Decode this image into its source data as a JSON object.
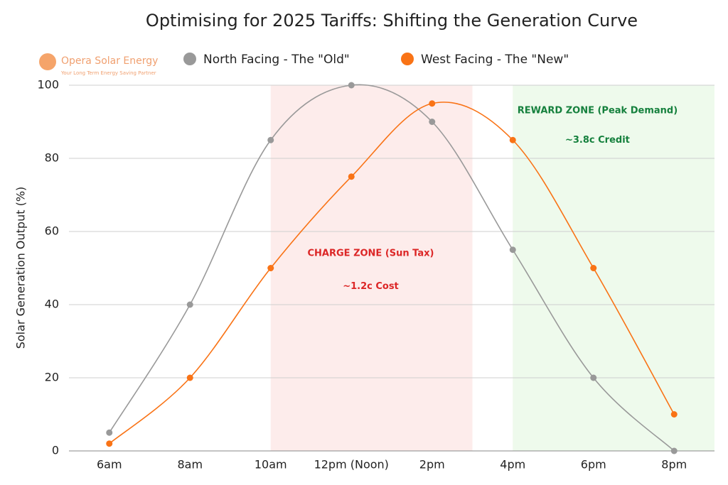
{
  "chart_data": {
    "type": "line",
    "title": "Optimising for 2025 Tariffs: Shifting the Generation Curve",
    "y_label": "Solar Generation Output (%)",
    "logo": {
      "name": "Opera Solar Energy",
      "tagline": "Your Long Term Energy Saving Partner"
    },
    "categories": [
      "6am",
      "8am",
      "10am",
      "12pm (Noon)",
      "2pm",
      "4pm",
      "6pm",
      "8pm"
    ],
    "series": [
      {
        "name": "North Facing - The \"Old\"",
        "color": "#999999",
        "values": [
          5,
          40,
          85,
          100,
          90,
          55,
          20,
          0
        ]
      },
      {
        "name": "West Facing - The \"New\"",
        "color": "#f97316",
        "values": [
          2,
          20,
          50,
          75,
          95,
          85,
          50,
          10
        ]
      }
    ],
    "annotations": [
      {
        "label": "CHARGE ZONE (Sun Tax)",
        "sublabel": "~1.2c Cost",
        "color": "#dc2626",
        "fill": "#fdeceb"
      },
      {
        "label": "REWARD ZONE (Peak Demand)",
        "sublabel": "~3.8c Credit",
        "color": "#15803d",
        "fill": "#eefaec"
      }
    ],
    "ylim": [
      0,
      100
    ],
    "yticks": [
      0,
      20,
      40,
      60,
      80,
      100
    ],
    "grid": true,
    "legend": "top"
  }
}
